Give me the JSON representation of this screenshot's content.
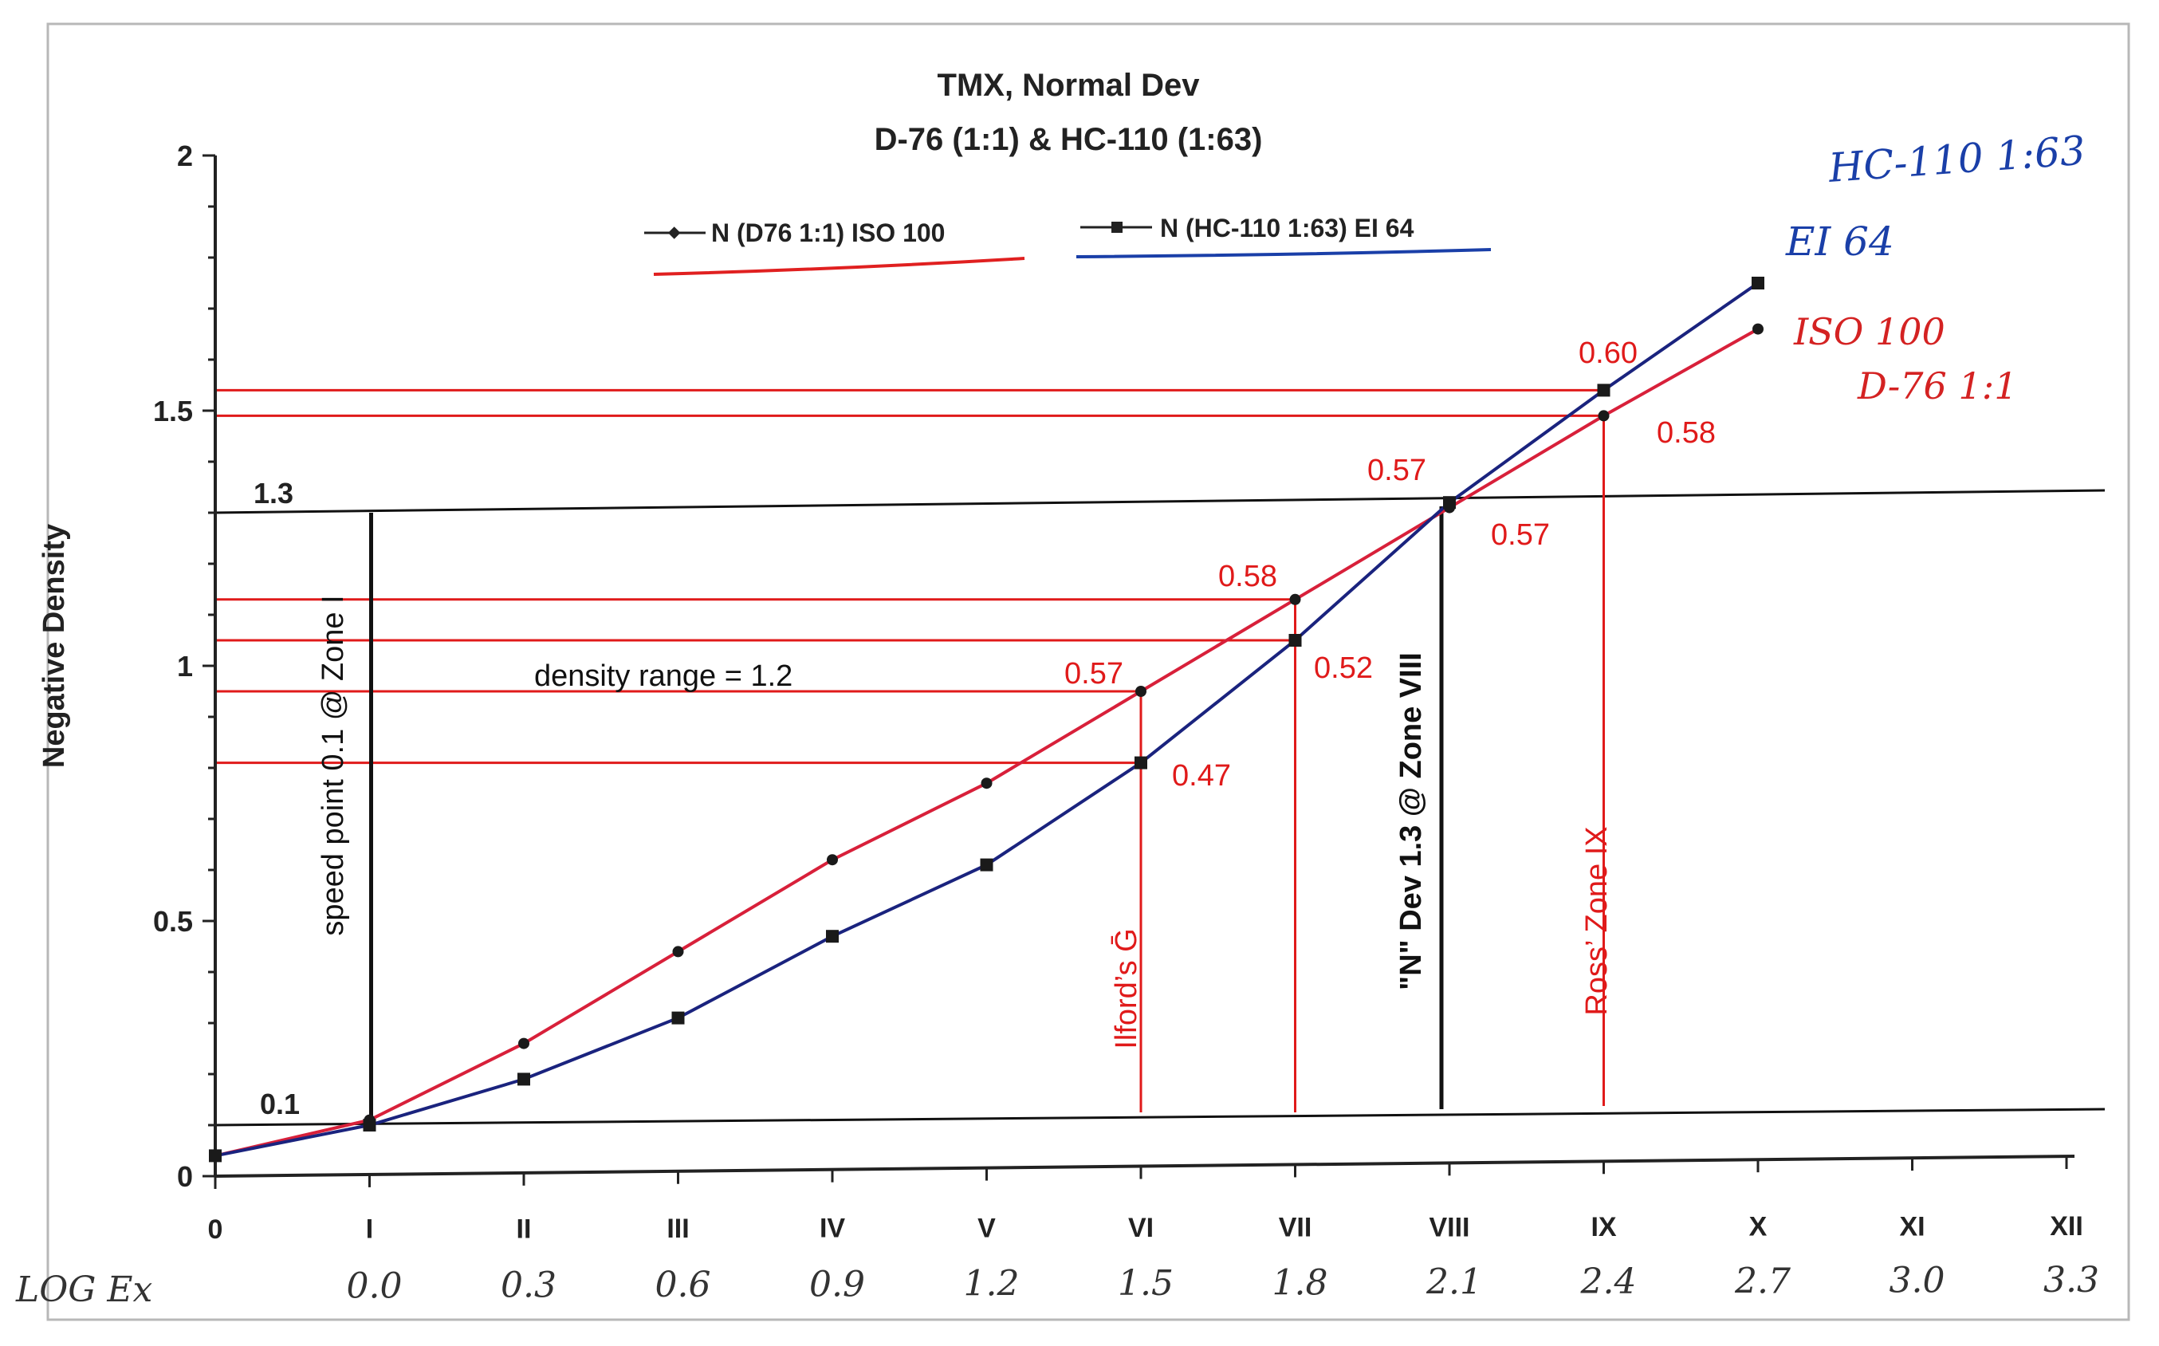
{
  "chart_data": {
    "type": "line",
    "title": "TMX, Normal Dev",
    "subtitle": "D-76 (1:1) & HC-110 (1:63)",
    "ylabel": "Negative Density",
    "xlabel_handwritten": "LOG Ex",
    "ylim": [
      0,
      2
    ],
    "yticks": [
      "0",
      "0.5",
      "1",
      "1.5",
      "2"
    ],
    "categories": [
      "0",
      "I",
      "II",
      "III",
      "IV",
      "V",
      "VI",
      "VII",
      "VIII",
      "IX",
      "X",
      "XI",
      "XII"
    ],
    "log_exposure_labels": [
      "",
      "0.0",
      "0.3",
      "0.6",
      "0.9",
      "1.2",
      "1.5",
      "1.8",
      "2.1",
      "2.4",
      "2.7",
      "3.0",
      "3.3"
    ],
    "legend_position": "top-center",
    "series": [
      {
        "name": "N (D76 1:1) ISO 100",
        "marker": "diamond",
        "underline_color": "#e02020",
        "values": [
          0.04,
          0.11,
          0.26,
          0.44,
          0.62,
          0.77,
          0.95,
          1.13,
          1.31,
          1.49,
          1.66,
          null,
          null
        ]
      },
      {
        "name": "N (HC-110 1:63) EI 64",
        "marker": "square",
        "underline_color": "#1a3fa8",
        "values": [
          0.04,
          0.1,
          0.19,
          0.31,
          0.47,
          0.61,
          0.81,
          1.05,
          1.32,
          1.54,
          1.75,
          null,
          null
        ]
      }
    ],
    "reference_lines": {
      "low_level": "0.1",
      "high_level": "1.3",
      "density_range": "density range = 1.2",
      "speed_point": "speed point  0.1 @ Zone I",
      "n_dev": "\"N\"  Dev 1.3 @ Zone VIII",
      "ilford": "Ilford’s Ḡ",
      "ross": "Ross’ Zone IX"
    },
    "gradient_labels": [
      "0.60",
      "0.58",
      "0.57",
      "0.57",
      "0.58",
      "0.52",
      "0.57",
      "0.47"
    ],
    "handwritten_notes": {
      "hc110": "HC-110  1:63",
      "ei": "EI  64",
      "iso": "ISO  100",
      "d76": "D-76  1:1"
    },
    "colors": {
      "d76_line": "#d8203a",
      "hc110_line": "#1a237e",
      "guide_red": "#e01a1a",
      "guide_black": "#111111"
    }
  }
}
